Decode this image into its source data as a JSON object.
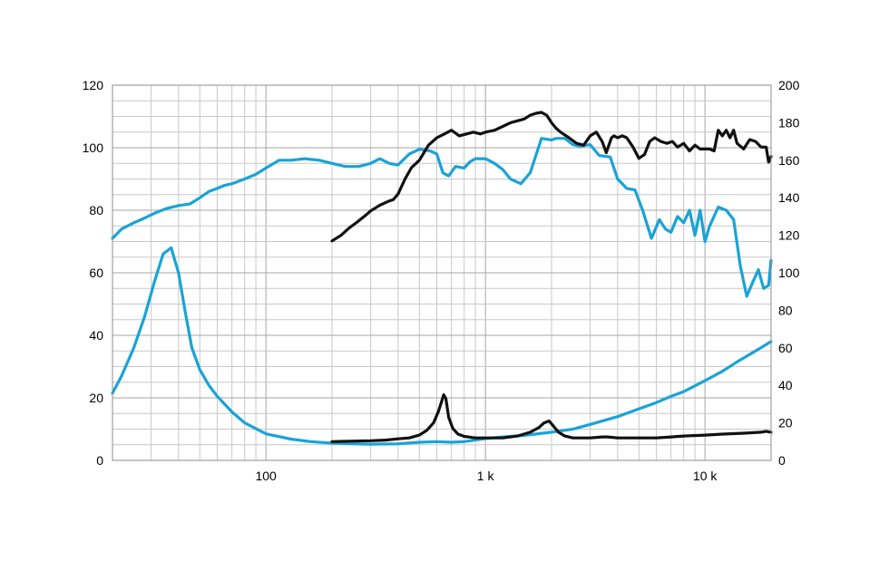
{
  "chart_data": {
    "type": "line",
    "x_scale": "log",
    "xlim": [
      20,
      20000
    ],
    "y_left_lim": [
      0,
      120
    ],
    "y_right_lim": [
      0,
      200
    ],
    "grid": true,
    "x_tick_labels": [
      {
        "value": 100,
        "label": "100"
      },
      {
        "value": 1000,
        "label": "1 k"
      },
      {
        "value": 10000,
        "label": "10 k"
      }
    ],
    "y_left_ticks": [
      "0",
      "20",
      "40",
      "60",
      "80",
      "100",
      "120"
    ],
    "y_right_ticks": [
      "0",
      "20",
      "40",
      "60",
      "80",
      "100",
      "120",
      "140",
      "160",
      "180",
      "200"
    ],
    "colors": {
      "blue": "#1aa3d6",
      "black": "#111111"
    },
    "series": [
      {
        "color": "blue",
        "axis": "left",
        "x": [
          20,
          22,
          25,
          28,
          31,
          35,
          40,
          45,
          50,
          55,
          60,
          65,
          70,
          80,
          90,
          100,
          115,
          130,
          150,
          175,
          200,
          230,
          265,
          300,
          330,
          365,
          400,
          450,
          500,
          560,
          600,
          640,
          680,
          730,
          800,
          850,
          900,
          1000,
          1100,
          1200,
          1300,
          1450,
          1600,
          1800,
          2000,
          2100,
          2300,
          2500,
          2700,
          3000,
          3300,
          3700,
          4000,
          4400,
          4800,
          5200,
          5700,
          6200,
          6600,
          7000,
          7500,
          8000,
          8500,
          9000,
          9500,
          10000,
          10500,
          11500,
          12500,
          13500,
          14500,
          15500,
          16500,
          17500,
          18500,
          19500,
          20000
        ],
        "y": [
          71,
          74,
          76,
          77.5,
          79,
          80.5,
          81.5,
          82,
          84,
          86,
          87,
          88,
          88.5,
          90,
          91.5,
          93.5,
          96,
          96,
          96.5,
          96,
          95,
          94,
          94,
          95,
          96.5,
          95,
          94.5,
          98,
          99.5,
          99,
          98,
          92,
          91,
          94,
          93.5,
          95.5,
          96.5,
          96.5,
          95,
          93,
          90,
          88.5,
          92,
          103,
          102.5,
          103,
          103,
          101,
          100.5,
          101,
          97.5,
          97,
          90,
          87,
          86.5,
          80,
          71,
          77,
          74,
          73,
          78,
          76,
          80,
          72,
          80,
          70,
          75,
          81,
          80,
          77,
          62,
          52.5,
          57,
          61,
          55,
          56,
          64
        ]
      },
      {
        "color": "blue",
        "axis": "left",
        "x": [
          20,
          22,
          25,
          28,
          31,
          34,
          37,
          40,
          43,
          46,
          50,
          55,
          60,
          70,
          80,
          100,
          130,
          160,
          200,
          300,
          400,
          500,
          600,
          700,
          800,
          1000,
          1200,
          1500,
          2000,
          2500,
          3000,
          4000,
          5000,
          6000,
          7000,
          8000,
          10000,
          12000,
          14000,
          17000,
          20000
        ],
        "y": [
          21.5,
          27,
          36,
          46,
          57,
          66,
          68,
          60,
          47,
          36,
          29,
          24,
          20.5,
          15.5,
          12,
          8.5,
          6.8,
          6,
          5.5,
          5.2,
          5.3,
          5.8,
          6,
          5.8,
          6,
          7,
          7.5,
          8,
          9,
          10,
          11.5,
          14,
          16.5,
          18.5,
          20.5,
          22,
          25.5,
          28.5,
          31.5,
          35,
          38
        ]
      },
      {
        "color": "black",
        "axis": "right",
        "x": [
          200,
          220,
          240,
          260,
          280,
          300,
          330,
          360,
          380,
          400,
          430,
          460,
          500,
          550,
          600,
          650,
          700,
          760,
          820,
          880,
          950,
          1000,
          1100,
          1200,
          1300,
          1400,
          1500,
          1600,
          1700,
          1800,
          1900,
          2000,
          2100,
          2200,
          2400,
          2600,
          2800,
          3000,
          3200,
          3400,
          3550,
          3650,
          3750,
          3850,
          4000,
          4200,
          4400,
          4700,
          5000,
          5300,
          5600,
          5900,
          6300,
          6700,
          7100,
          7500,
          8000,
          8500,
          9000,
          9500,
          10000,
          10500,
          11000,
          11500,
          12000,
          12500,
          13000,
          13500,
          14000,
          15000,
          16000,
          17000,
          18000,
          19000,
          19500,
          20000
        ],
        "y": [
          117,
          120,
          124,
          127,
          130,
          133,
          136,
          138,
          139,
          142,
          150,
          156,
          160,
          168,
          172,
          174,
          176,
          173,
          174,
          175,
          174,
          175,
          176,
          178,
          180,
          181,
          182,
          184,
          185,
          185.5,
          184,
          180,
          177,
          175,
          172,
          169,
          168,
          173,
          175,
          170,
          164,
          168,
          172,
          173,
          172,
          173,
          172,
          167,
          161,
          163,
          170,
          172,
          170,
          169,
          170,
          167,
          169,
          165,
          168,
          166,
          166,
          166,
          165,
          176,
          173,
          176,
          172,
          176,
          169,
          166,
          171,
          170,
          167,
          167,
          159,
          162
        ]
      },
      {
        "color": "black",
        "axis": "right",
        "x": [
          200,
          250,
          300,
          350,
          400,
          450,
          500,
          540,
          580,
          610,
          630,
          645,
          660,
          680,
          710,
          750,
          800,
          900,
          1000,
          1200,
          1400,
          1600,
          1750,
          1850,
          1950,
          2050,
          2150,
          2300,
          2500,
          2800,
          3000,
          3400,
          3600,
          4000,
          5000,
          6000,
          7000,
          8000,
          10000,
          12000,
          15000,
          18000,
          19000,
          20000
        ],
        "y": [
          10,
          10.3,
          10.5,
          10.8,
          11.5,
          12,
          13.5,
          16,
          20,
          26,
          31,
          35,
          33,
          23,
          17,
          14,
          12.8,
          12,
          12,
          12,
          13,
          15,
          17.5,
          20,
          21,
          18,
          15,
          13,
          12,
          12,
          12,
          12.5,
          12.5,
          12,
          12,
          12,
          12.5,
          13,
          13.5,
          14,
          14.5,
          15,
          15.5,
          15
        ]
      }
    ]
  }
}
